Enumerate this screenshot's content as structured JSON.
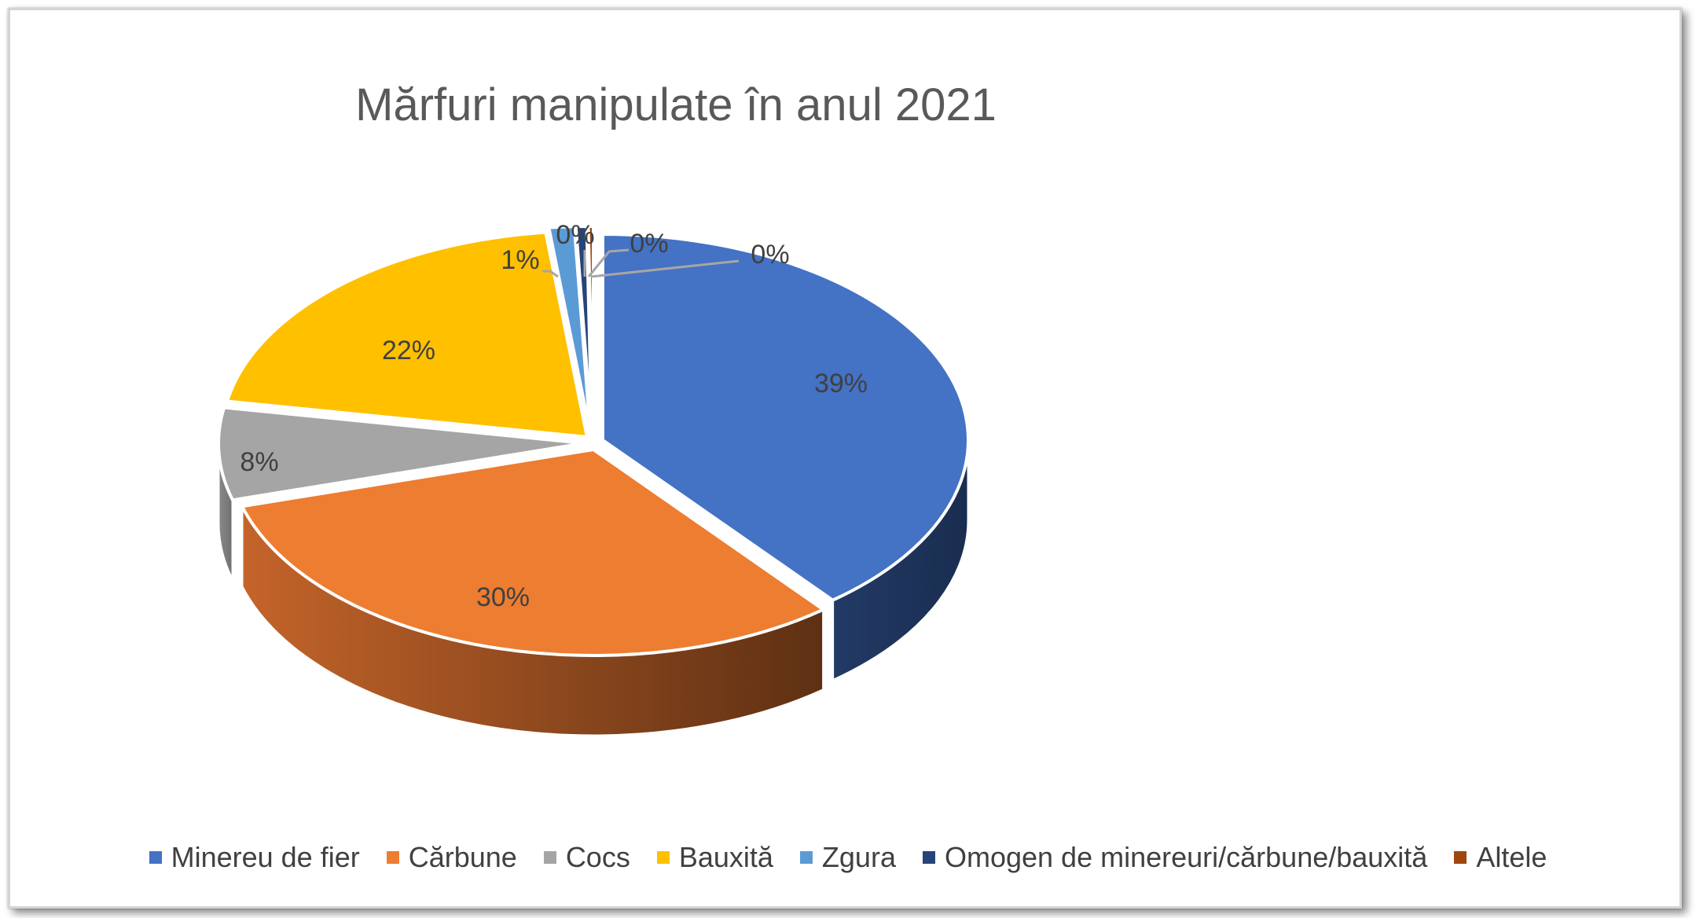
{
  "chart_data": {
    "type": "pie",
    "title": "Mărfuri manipulate în anul 2021",
    "categories": [
      "Minereu de fier",
      "Cărbune",
      "Cocs",
      "Bauxită",
      "Zgura",
      "Omogen de minereuri/cărbune/bauxită",
      "Altele"
    ],
    "values": [
      39,
      30,
      8,
      22,
      1,
      0,
      0
    ],
    "labels": [
      "39%",
      "30%",
      "8%",
      "22%",
      "1%",
      "0%",
      "0%"
    ],
    "colors": [
      "#4472C4",
      "#ED7D31",
      "#A5A5A5",
      "#FFC000",
      "#5B9BD5",
      "#264478",
      "#9E480E"
    ],
    "legend_position": "bottom",
    "style": "3d-exploded"
  }
}
